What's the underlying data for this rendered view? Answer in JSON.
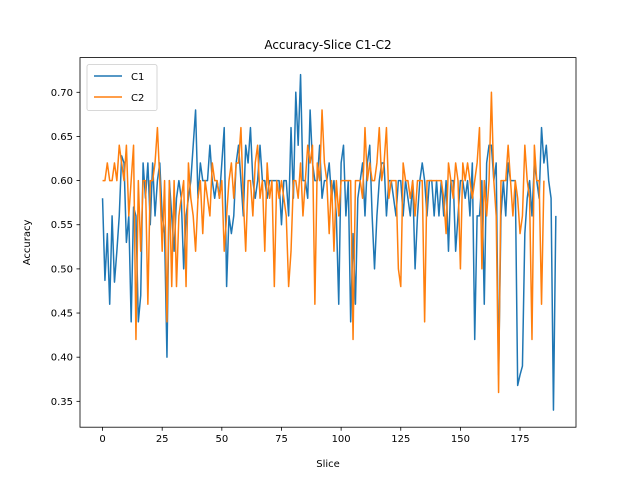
{
  "chart_data": {
    "type": "line",
    "title": "Accuracy-Slice C1-C2",
    "xlabel": "Slice",
    "ylabel": "Accuracy",
    "xlim": [
      -9.45,
      198.45
    ],
    "ylim": [
      0.3207,
      0.7393
    ],
    "xticks": [
      0,
      25,
      50,
      75,
      100,
      125,
      150,
      175
    ],
    "yticks": [
      0.35,
      0.4,
      0.45,
      0.5,
      0.55,
      0.6,
      0.65,
      0.7
    ],
    "ytick_labels": [
      "0.35",
      "0.40",
      "0.45",
      "0.50",
      "0.55",
      "0.60",
      "0.65",
      "0.70"
    ],
    "grid": false,
    "legend": "top-left",
    "series": [
      {
        "name": "C1",
        "color": "#1f77b4",
        "values": [
          0.58,
          0.487,
          0.54,
          0.46,
          0.56,
          0.485,
          0.52,
          0.56,
          0.628,
          0.62,
          0.53,
          0.56,
          0.44,
          0.57,
          0.56,
          0.44,
          0.47,
          0.62,
          0.58,
          0.62,
          0.55,
          0.62,
          0.56,
          0.6,
          0.62,
          0.56,
          0.54,
          0.4,
          0.6,
          0.56,
          0.52,
          0.58,
          0.6,
          0.58,
          0.5,
          0.56,
          0.58,
          0.6,
          0.64,
          0.68,
          0.58,
          0.62,
          0.6,
          0.6,
          0.6,
          0.64,
          0.6,
          0.58,
          0.6,
          0.58,
          0.62,
          0.66,
          0.48,
          0.56,
          0.54,
          0.56,
          0.62,
          0.64,
          0.6,
          0.56,
          0.64,
          0.62,
          0.66,
          0.6,
          0.58,
          0.6,
          0.64,
          0.6,
          0.6,
          0.58,
          0.6,
          0.6,
          0.6,
          0.6,
          0.6,
          0.55,
          0.6,
          0.6,
          0.56,
          0.66,
          0.58,
          0.7,
          0.64,
          0.72,
          0.6,
          0.6,
          0.58,
          0.68,
          0.62,
          0.6,
          0.6,
          0.64,
          0.58,
          0.6,
          0.6,
          0.62,
          0.58,
          0.6,
          0.56,
          0.46,
          0.62,
          0.64,
          0.56,
          0.6,
          0.44,
          0.54,
          0.46,
          0.58,
          0.6,
          0.62,
          0.56,
          0.62,
          0.64,
          0.56,
          0.5,
          0.56,
          0.6,
          0.62,
          0.62,
          0.56,
          0.6,
          0.6,
          0.58,
          0.56,
          0.6,
          0.6,
          0.56,
          0.6,
          0.58,
          0.56,
          0.6,
          0.5,
          0.56,
          0.6,
          0.62,
          0.6,
          0.56,
          0.6,
          0.6,
          0.56,
          0.6,
          0.56,
          0.6,
          0.56,
          0.6,
          0.52,
          0.6,
          0.6,
          0.52,
          0.56,
          0.6,
          0.6,
          0.58,
          0.6,
          0.56,
          0.62,
          0.42,
          0.56,
          0.56,
          0.6,
          0.46,
          0.62,
          0.64,
          0.64,
          0.6,
          0.62,
          0.38,
          0.56,
          0.6,
          0.56,
          0.62,
          0.6,
          0.6,
          0.6,
          0.368,
          0.38,
          0.39,
          0.54,
          0.58,
          0.6,
          0.56,
          0.62,
          0.6,
          0.58,
          0.66,
          0.62,
          0.64,
          0.6,
          0.58,
          0.34,
          0.56
        ]
      },
      {
        "name": "C2",
        "color": "#ff7f0e",
        "values": [
          0.6,
          0.6,
          0.62,
          0.6,
          0.6,
          0.62,
          0.6,
          0.64,
          0.62,
          0.6,
          0.64,
          0.56,
          0.6,
          0.64,
          0.42,
          0.6,
          0.52,
          0.6,
          0.6,
          0.46,
          0.6,
          0.6,
          0.62,
          0.66,
          0.6,
          0.52,
          0.6,
          0.44,
          0.6,
          0.48,
          0.6,
          0.48,
          0.56,
          0.58,
          0.6,
          0.48,
          0.62,
          0.58,
          0.56,
          0.52,
          0.58,
          0.6,
          0.54,
          0.6,
          0.58,
          0.56,
          0.62,
          0.6,
          0.6,
          0.58,
          0.6,
          0.52,
          0.56,
          0.6,
          0.62,
          0.58,
          0.62,
          0.62,
          0.66,
          0.58,
          0.52,
          0.6,
          0.6,
          0.56,
          0.62,
          0.64,
          0.58,
          0.6,
          0.52,
          0.62,
          0.58,
          0.6,
          0.48,
          0.6,
          0.58,
          0.6,
          0.58,
          0.56,
          0.48,
          0.52,
          0.6,
          0.6,
          0.58,
          0.62,
          0.56,
          0.6,
          0.64,
          0.62,
          0.64,
          0.46,
          0.62,
          0.6,
          0.68,
          0.62,
          0.6,
          0.54,
          0.6,
          0.52,
          0.6,
          0.56,
          0.6,
          0.6,
          0.6,
          0.6,
          0.6,
          0.42,
          0.6,
          0.6,
          0.6,
          0.58,
          0.66,
          0.6,
          0.62,
          0.6,
          0.6,
          0.62,
          0.66,
          0.6,
          0.62,
          0.66,
          0.58,
          0.6,
          0.6,
          0.6,
          0.5,
          0.48,
          0.62,
          0.6,
          0.6,
          0.58,
          0.6,
          0.56,
          0.6,
          0.6,
          0.6,
          0.44,
          0.6,
          0.6,
          0.6,
          0.6,
          0.6,
          0.6,
          0.6,
          0.58,
          0.54,
          0.62,
          0.6,
          0.58,
          0.62,
          0.6,
          0.5,
          0.62,
          0.6,
          0.62,
          0.6,
          0.58,
          0.6,
          0.62,
          0.66,
          0.5,
          0.6,
          0.56,
          0.6,
          0.7,
          0.6,
          0.56,
          0.36,
          0.6,
          0.6,
          0.6,
          0.64,
          0.6,
          0.56,
          0.6,
          0.58,
          0.54,
          0.56,
          0.64,
          0.6,
          0.58,
          0.42,
          0.64,
          0.6,
          0.6,
          0.46,
          0.6
        ]
      }
    ]
  }
}
